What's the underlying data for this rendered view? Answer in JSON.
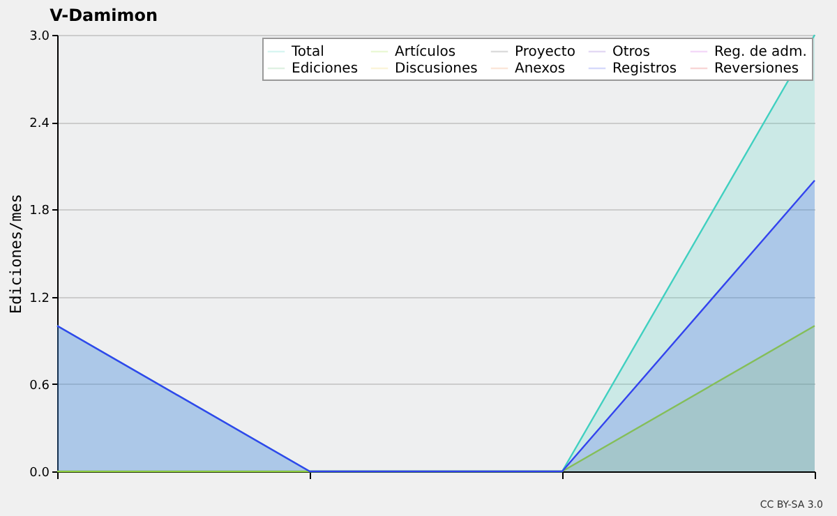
{
  "chart_data": {
    "type": "area",
    "title": "V-Damimon",
    "ylabel": "Ediciones/mes",
    "categories": [
      null,
      null,
      null,
      null
    ],
    "series": [
      {
        "name": "Total",
        "color": "#40d0c0",
        "values": [
          1,
          0,
          0,
          3
        ]
      },
      {
        "name": "Ediciones",
        "color": "#66bb77",
        "values": [
          null,
          null,
          null,
          null
        ]
      },
      {
        "name": "Artículos",
        "color": "#99dd33",
        "values": [
          0,
          0,
          0,
          1
        ]
      },
      {
        "name": "Discusiones",
        "color": "#eecc44",
        "values": [
          null,
          null,
          null,
          null
        ]
      },
      {
        "name": "Proyecto",
        "color": "#555555",
        "values": [
          null,
          null,
          null,
          null
        ]
      },
      {
        "name": "Anexos",
        "color": "#ee8844",
        "values": [
          null,
          null,
          null,
          null
        ]
      },
      {
        "name": "Otros",
        "color": "#7744cc",
        "values": [
          null,
          null,
          null,
          null
        ]
      },
      {
        "name": "Registros",
        "color": "#3344ee",
        "values": [
          1,
          0,
          0,
          2
        ]
      },
      {
        "name": "Reg. de adm.",
        "color": "#cc44dd",
        "values": [
          null,
          null,
          null,
          null
        ]
      },
      {
        "name": "Reversiones",
        "color": "#dd3333",
        "values": [
          null,
          null,
          null,
          null
        ]
      }
    ],
    "ylim": [
      0,
      3.0
    ],
    "yticks": [
      {
        "value": 0,
        "label": "0.0"
      },
      {
        "value": 0.6,
        "label": "0.6"
      },
      {
        "value": 1.2,
        "label": "1.2"
      },
      {
        "value": 1.8,
        "label": "1.8"
      },
      {
        "value": 2.4,
        "label": "2.4"
      },
      {
        "value": 3.0,
        "label": "3.0"
      }
    ],
    "grid": "y",
    "legend": "top right",
    "annotations": [
      "CC BY-SA 3.0"
    ]
  }
}
